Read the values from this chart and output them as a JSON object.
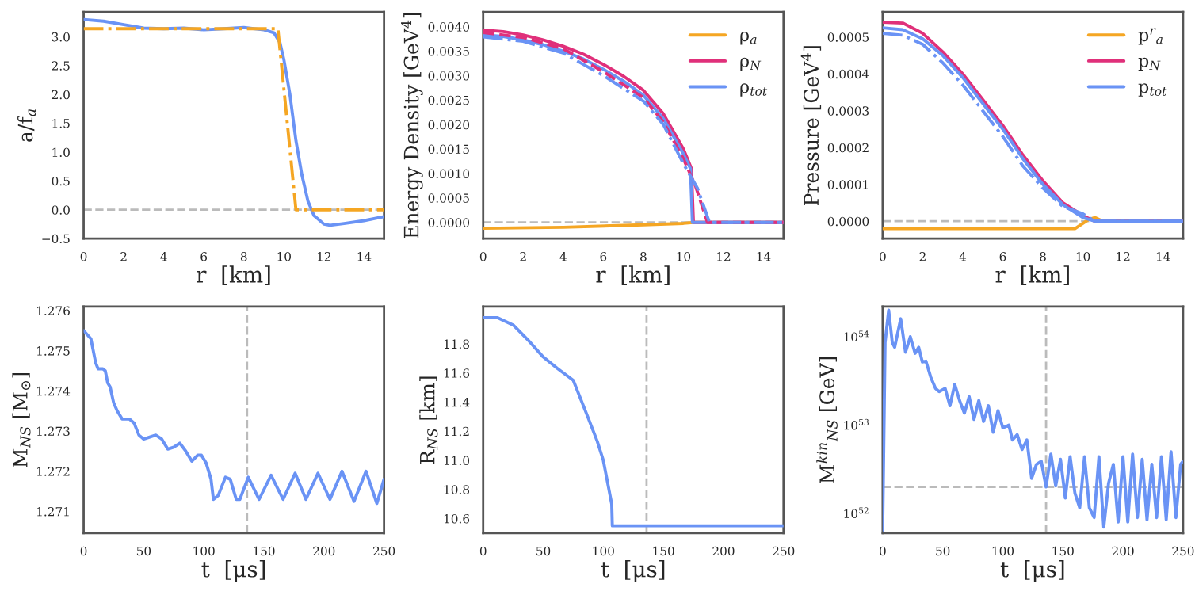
{
  "chart_data": [
    {
      "type": "line",
      "xlabel": "r  [km]",
      "ylabel": "a/f$_{a}$",
      "xlim": [
        0,
        15
      ],
      "xticks": [
        0,
        2,
        4,
        6,
        8,
        10,
        12,
        14
      ],
      "ylim": [
        -0.5,
        3.43
      ],
      "yticks": [
        {
          "value": -0.5,
          "label": "−0.5"
        },
        {
          "value": 0,
          "label": "0.0"
        },
        0.5,
        {
          "value": 1,
          "label": "1.0"
        },
        1.5,
        {
          "value": 2,
          "label": "2.0"
        },
        2.5,
        {
          "value": 3,
          "label": "3.0"
        }
      ],
      "ref_lines": [
        {
          "axis": "y",
          "value": 0,
          "color": "#bbbbbb",
          "line_style": "dashed"
        }
      ],
      "series": [
        {
          "color": "#6a93f5",
          "line_style": "solid",
          "x": [
            0,
            1,
            2,
            3,
            4,
            5,
            6,
            7,
            8,
            9,
            9.5,
            9.8,
            10,
            10.3,
            10.6,
            10.9,
            11.2,
            11.5,
            12,
            12.3,
            13,
            14,
            15
          ],
          "values": [
            3.3,
            3.27,
            3.21,
            3.15,
            3.14,
            3.15,
            3.12,
            3.14,
            3.16,
            3.12,
            3.07,
            2.9,
            2.6,
            2.0,
            1.2,
            0.6,
            0.15,
            -0.1,
            -0.25,
            -0.27,
            -0.24,
            -0.19,
            -0.12
          ]
        },
        {
          "color": "#f5a623",
          "line_style": "dashdot",
          "x": [
            0,
            9.7,
            10.6,
            15
          ],
          "values": [
            3.14,
            3.14,
            0.0,
            0.0
          ]
        }
      ]
    },
    {
      "type": "line",
      "xlabel": "r  [km]",
      "ylabel": "Energy Density [GeV$^{4}$]",
      "legend": "top right",
      "xlim": [
        0,
        15
      ],
      "xticks": [
        0,
        2,
        4,
        6,
        8,
        10,
        12,
        14
      ],
      "ylim": [
        -0.00033,
        0.0043
      ],
      "yticks": [
        {
          "value": 0,
          "label": "0.0000"
        },
        {
          "value": 0.0005,
          "label": "0.0005"
        },
        {
          "value": 0.001,
          "label": "0.0010"
        },
        {
          "value": 0.0015,
          "label": "0.0015"
        },
        {
          "value": 0.002,
          "label": "0.0020"
        },
        {
          "value": 0.0025,
          "label": "0.0025"
        },
        {
          "value": 0.003,
          "label": "0.0030"
        },
        {
          "value": 0.0035,
          "label": "0.0035"
        },
        {
          "value": 0.004,
          "label": "0.0040"
        }
      ],
      "ref_lines": [
        {
          "axis": "y",
          "value": 0,
          "color": "#bbbbbb",
          "line_style": "dashed"
        }
      ],
      "series": [
        {
          "name": "ρ$_{a}$",
          "color": "#f5a623",
          "line_style": "solid",
          "x": [
            0,
            4,
            8,
            10,
            10.5,
            15
          ],
          "values": [
            -0.00012,
            -0.0001,
            -5e-05,
            -2e-05,
            0.0,
            0.0
          ]
        },
        {
          "name": "ρ$_{N}$",
          "color": "#e0307a",
          "line_style": "solid",
          "x": [
            0,
            1,
            2,
            3,
            4,
            5,
            6,
            7,
            8,
            9,
            10,
            10.4,
            10.5,
            15
          ],
          "values": [
            0.00393,
            0.0039,
            0.00383,
            0.00373,
            0.0036,
            0.00344,
            0.00323,
            0.00299,
            0.0027,
            0.00222,
            0.0015,
            0.0011,
            0.0,
            0.0
          ]
        },
        {
          "name": "ρ$_{tot}$",
          "color": "#6a93f5",
          "line_style": "solid",
          "x": [
            0,
            1,
            2,
            3,
            4,
            5,
            6,
            7,
            8,
            9,
            10,
            10.35,
            10.45,
            15
          ],
          "values": [
            0.00383,
            0.0038,
            0.00373,
            0.00363,
            0.0035,
            0.00334,
            0.00313,
            0.00289,
            0.0026,
            0.00212,
            0.0014,
            0.0011,
            0.0,
            0.0
          ]
        },
        {
          "color": "#e0307a",
          "line_style": "dashed",
          "x": [
            0,
            2,
            4,
            6,
            8,
            9,
            10,
            10.6,
            11.2,
            15
          ],
          "values": [
            0.00388,
            0.00378,
            0.00355,
            0.00308,
            0.00255,
            0.00205,
            0.0013,
            0.00075,
            0.0,
            0.0
          ]
        },
        {
          "color": "#6a93f5",
          "line_style": "dashdot",
          "x": [
            0,
            2,
            4,
            6,
            8,
            9,
            10,
            10.7,
            11.3,
            15
          ],
          "values": [
            0.00379,
            0.0037,
            0.00346,
            0.003,
            0.00248,
            0.002,
            0.0012,
            0.0007,
            0.0,
            0.0
          ]
        }
      ]
    },
    {
      "type": "line",
      "xlabel": "r  [km]",
      "ylabel": "Pressure [GeV$^{4}$]",
      "legend": "top right",
      "xlim": [
        0,
        15
      ],
      "xticks": [
        0,
        2,
        4,
        6,
        8,
        10,
        12,
        14
      ],
      "ylim": [
        -4.7e-05,
        0.000568
      ],
      "yticks": [
        {
          "value": 0,
          "label": "0.0000"
        },
        {
          "value": 0.0001,
          "label": "0.0001"
        },
        {
          "value": 0.0002,
          "label": "0.0002"
        },
        {
          "value": 0.0003,
          "label": "0.0003"
        },
        {
          "value": 0.0004,
          "label": "0.0004"
        },
        {
          "value": 0.0005,
          "label": "0.0005"
        }
      ],
      "ref_lines": [
        {
          "axis": "y",
          "value": 0,
          "color": "#bbbbbb",
          "line_style": "dashed"
        }
      ],
      "series": [
        {
          "name": "p$^{r}$$_{a}$",
          "color": "#f5a623",
          "line_style": "solid",
          "x": [
            0,
            9.6,
            10.3,
            10.6,
            11,
            15
          ],
          "values": [
            -2e-05,
            -2e-05,
            5e-06,
            1e-05,
            0.0,
            0.0
          ]
        },
        {
          "name": "p$_{N}$",
          "color": "#e0307a",
          "line_style": "solid",
          "x": [
            0,
            1,
            2,
            3,
            4,
            5,
            6,
            7,
            8,
            9,
            10,
            10.6,
            15
          ],
          "values": [
            0.00054,
            0.000538,
            0.00051,
            0.00046,
            0.0004,
            0.00033,
            0.00026,
            0.00018,
            0.00011,
            5e-05,
            1.5e-05,
            0.0,
            0.0
          ]
        },
        {
          "name": "p$_{tot}$",
          "color": "#6a93f5",
          "line_style": "solid",
          "x": [
            0,
            1,
            2,
            3,
            4,
            5,
            6,
            7,
            8,
            9,
            10,
            10.6,
            15
          ],
          "values": [
            0.000525,
            0.00052,
            0.000495,
            0.00045,
            0.00039,
            0.00032,
            0.00025,
            0.00017,
            0.0001,
            4.5e-05,
            1e-05,
            0.0,
            0.0
          ]
        },
        {
          "color": "#6a93f5",
          "line_style": "dashdot",
          "x": [
            0,
            1,
            2,
            3,
            4,
            5,
            6,
            7,
            8,
            9,
            10,
            10.6,
            15
          ],
          "values": [
            0.00051,
            0.000505,
            0.00048,
            0.00043,
            0.00037,
            0.0003,
            0.00023,
            0.00015,
            9e-05,
            4e-05,
            2e-05,
            0.0,
            0.0
          ]
        }
      ]
    },
    {
      "type": "line",
      "xlabel": "t  [μs]",
      "ylabel": "M$_{NS}$ [M$_{⊙}$]",
      "xlim": [
        0,
        250
      ],
      "xticks": [
        0,
        50,
        100,
        150,
        200,
        250
      ],
      "ylim": [
        1.27046,
        1.2761
      ],
      "yticks": [
        1.271,
        1.272,
        1.273,
        1.274,
        1.275,
        1.276
      ],
      "ref_lines": [
        {
          "axis": "x",
          "value": 136,
          "color": "#bbbbbb",
          "line_style": "dashed"
        }
      ],
      "series": [
        {
          "color": "#6a93f5",
          "line_style": "solid",
          "x": [
            0,
            6,
            10,
            12,
            16,
            18,
            20,
            22,
            25,
            28,
            32,
            38,
            42,
            46,
            50,
            55,
            60,
            65,
            70,
            75,
            80,
            85,
            90,
            95,
            98,
            102,
            106,
            108,
            112,
            118,
            122,
            127,
            130,
            137,
            146,
            156,
            166,
            176,
            185,
            195,
            205,
            215,
            225,
            235,
            244,
            250
          ],
          "values": [
            1.2755,
            1.2753,
            1.2747,
            1.27455,
            1.27455,
            1.2745,
            1.2742,
            1.2741,
            1.2737,
            1.2735,
            1.2733,
            1.2733,
            1.2732,
            1.2729,
            1.2728,
            1.27285,
            1.2729,
            1.2728,
            1.27255,
            1.2726,
            1.2727,
            1.2725,
            1.27225,
            1.2724,
            1.2724,
            1.2722,
            1.2718,
            1.2713,
            1.2714,
            1.27185,
            1.2718,
            1.2713,
            1.2713,
            1.27185,
            1.2713,
            1.2719,
            1.2713,
            1.27195,
            1.2713,
            1.27195,
            1.2713,
            1.272,
            1.27125,
            1.272,
            1.2712,
            1.2718
          ]
        }
      ]
    },
    {
      "type": "line",
      "xlabel": "t  [μs]",
      "ylabel": "R$_{NS}$ [km]",
      "xlim": [
        0,
        250
      ],
      "xticks": [
        0,
        50,
        100,
        150,
        200,
        250
      ],
      "ylim": [
        10.5,
        12.057
      ],
      "yticks": [
        10.6,
        10.8,
        {
          "value": 11,
          "label": "11.0"
        },
        11.2,
        11.4,
        11.6,
        11.8
      ],
      "ref_lines": [
        {
          "axis": "x",
          "value": 136,
          "color": "#bbbbbb",
          "line_style": "dashed"
        }
      ],
      "series": [
        {
          "color": "#6a93f5",
          "line_style": "solid",
          "x": [
            0,
            12,
            25,
            37,
            50,
            62,
            75,
            87,
            95,
            100,
            107,
            107.5,
            250
          ],
          "values": [
            11.98,
            11.98,
            11.93,
            11.83,
            11.71,
            11.63,
            11.55,
            11.3,
            11.13,
            11.0,
            10.7,
            10.55,
            10.55
          ]
        }
      ]
    },
    {
      "type": "line",
      "log": "y",
      "xlabel": "t  [μs]",
      "ylabel": "M$^{kin}$$_{NS}$ [GeV]",
      "xlim": [
        0,
        250
      ],
      "xticks": [
        0,
        50,
        100,
        150,
        200,
        250
      ],
      "ylim": [
        6e+51,
        2.2e+54
      ],
      "yticks": [
        {
          "value": 1e+52,
          "label": "10$^{52}$"
        },
        {
          "value": 1e+53,
          "label": "10$^{53}$"
        },
        {
          "value": 1e+54,
          "label": "10$^{54}$"
        }
      ],
      "ref_lines": [
        {
          "axis": "x",
          "value": 136,
          "color": "#bbbbbb",
          "line_style": "dashed"
        },
        {
          "axis": "y",
          "value": 2e+52,
          "color": "#bbbbbb",
          "line_style": "dashed"
        }
      ],
      "series": [
        {
          "color": "#6a93f5",
          "line_style": "solid",
          "x": [
            0,
            2,
            5,
            8,
            10,
            15,
            19,
            23,
            27,
            30,
            33,
            36,
            40,
            44,
            47,
            52,
            56,
            60,
            64,
            68,
            72,
            76,
            80,
            84,
            88,
            92,
            96,
            100,
            105,
            108,
            112,
            116,
            120,
            124,
            128,
            132,
            136,
            140,
            144,
            148,
            152,
            156,
            160,
            164,
            168,
            172,
            176,
            180,
            184,
            188,
            192,
            196,
            200,
            204,
            208,
            212,
            216,
            220,
            224,
            228,
            232,
            236,
            240,
            244,
            248,
            250
          ],
          "values": [
            6.5e+51,
            8.6e+53,
            2e+54,
            8.6e+53,
            7.6e+53,
            1.6e+54,
            6.7e+53,
            1e+54,
            6.5e+53,
            7.6e+53,
            5.2e+53,
            5.3e+53,
            3.5e+53,
            2.6e+53,
            2.4e+53,
            2.6e+53,
            1.66e+53,
            2.9e+53,
            1.9e+53,
            1.37e+53,
            2.1e+53,
            1.16e+53,
            1.9e+53,
            1.1e+53,
            1.66e+53,
            8.3e+52,
            1.46e+53,
            9.3e+52,
            1e+53,
            6.8e+52,
            7.8e+52,
            5.3e+52,
            6.8e+52,
            2.5e+52,
            3.6e+52,
            3.9e+52,
            2e+52,
            4.7e+52,
            2.05e+52,
            4.1e+52,
            1.5e+52,
            4.4e+52,
            1.7e+52,
            1.16e+52,
            4.4e+52,
            1.16e+52,
            9e+51,
            4.4e+52,
            7e+51,
            2.2e+52,
            3.6e+52,
            8e+51,
            4.4e+52,
            8e+51,
            4.7e+52,
            9e+51,
            4.1e+52,
            8.5e+51,
            3.6e+52,
            9e+51,
            4.4e+52,
            8.5e+51,
            5e+52,
            9e+51,
            3.6e+52,
            3.9e+52
          ]
        }
      ]
    }
  ]
}
